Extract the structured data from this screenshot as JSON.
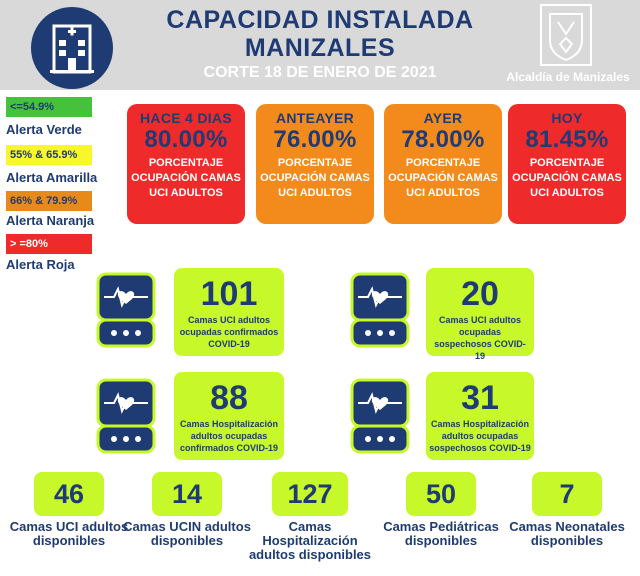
{
  "header": {
    "title_line1": "CAPACIDAD INSTALADA",
    "title_line2": "MANIZALES",
    "subtitle": "CORTE 18 DE ENERO DE 2021",
    "logo_text": "Alcaldía de Manizales",
    "colors": {
      "header_bg": "#d9d9d9",
      "navy": "#1f3b73"
    }
  },
  "legend": [
    {
      "range": "<=54.9%",
      "label": "Alerta Verde",
      "color": "#45c13b"
    },
    {
      "range": "55% & 65.9%",
      "label": "Alerta Amarilla",
      "color": "#f7f72a"
    },
    {
      "range": "66% & 79.9%",
      "label": "Alerta Naranja",
      "color": "#e88a1a"
    },
    {
      "range": "> =80%",
      "label": "Alerta Roja",
      "color": "#ef2a2a"
    }
  ],
  "days": [
    {
      "label": "HACE 4 DIAS",
      "value": "80.00%",
      "desc": "PORCENTAJE OCUPACIÓN CAMAS UCI ADULTOS",
      "color": "#ef2a2a"
    },
    {
      "label": "ANTEAYER",
      "value": "76.00%",
      "desc": "PORCENTAJE OCUPACIÓN CAMAS UCI ADULTOS",
      "color": "#f38b1c"
    },
    {
      "label": "AYER",
      "value": "78.00%",
      "desc": "PORCENTAJE OCUPACIÓN CAMAS UCI ADULTOS",
      "color": "#f38b1c"
    },
    {
      "label": "HOY",
      "value": "81.45%",
      "desc": "PORCENTAJE OCUPACIÓN CAMAS UCI ADULTOS",
      "color": "#ef2a2a"
    }
  ],
  "stats": [
    {
      "value": "101",
      "desc": "Camas UCI adultos ocupadas confirmados COVID-19"
    },
    {
      "value": "20",
      "desc": "Camas UCI adultos ocupadas sospechosos COVID-19"
    },
    {
      "value": "88",
      "desc": "Camas Hospitalización adultos ocupadas confirmados COVID-19"
    },
    {
      "value": "31",
      "desc": "Camas Hospitalización adultos ocupadas sospechosos COVID-19"
    }
  ],
  "available": [
    {
      "value": "46",
      "label": "Camas UCI adultos disponibles"
    },
    {
      "value": "14",
      "label": "Camas UCIN adultos disponibles"
    },
    {
      "value": "127",
      "label": "Camas Hospitalización adultos disponibles"
    },
    {
      "value": "50",
      "label": "Camas Pediátricas disponibles"
    },
    {
      "value": "7",
      "label": "Camas Neonatales disponibles"
    }
  ],
  "icons": {
    "hospital": "hospital-building-icon",
    "monitor": "heart-monitor-icon",
    "crest": "city-crest-icon"
  },
  "accent_green": "#c6f82a"
}
